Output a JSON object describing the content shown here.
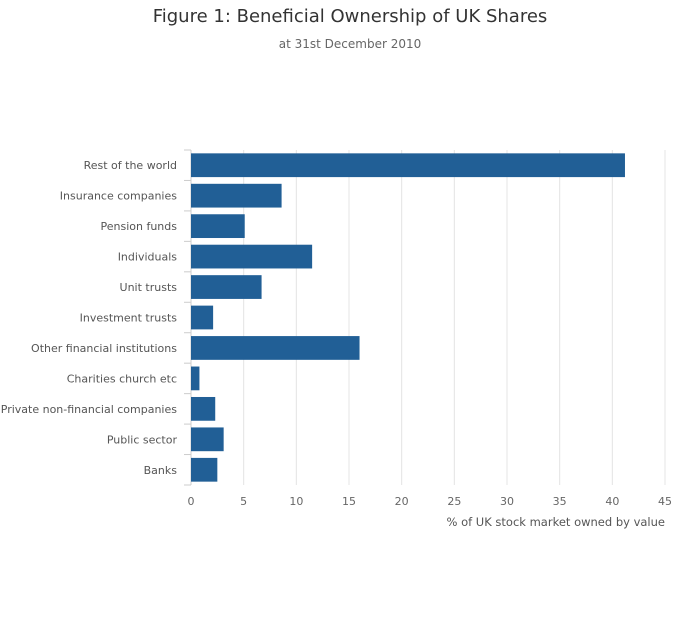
{
  "chart_data": {
    "type": "bar",
    "orientation": "horizontal",
    "title": "Figure 1: Beneficial Ownership of UK Shares",
    "subtitle": "at 31st December 2010",
    "xlabel": "% of UK stock market owned by value",
    "ylabel": "",
    "xlim": [
      0,
      45
    ],
    "xticks": [
      0,
      5,
      10,
      15,
      20,
      25,
      30,
      35,
      40,
      45
    ],
    "grid": true,
    "bar_color": "#215f96",
    "categories": [
      "Rest of the world",
      "Insurance companies",
      "Pension funds",
      "Individuals",
      "Unit trusts",
      "Investment trusts",
      "Other financial institutions",
      "Charities church etc",
      "Private non-financial companies",
      "Public sector",
      "Banks"
    ],
    "values": [
      41.2,
      8.6,
      5.1,
      11.5,
      6.7,
      2.1,
      16.0,
      0.8,
      2.3,
      3.1,
      2.5
    ]
  }
}
